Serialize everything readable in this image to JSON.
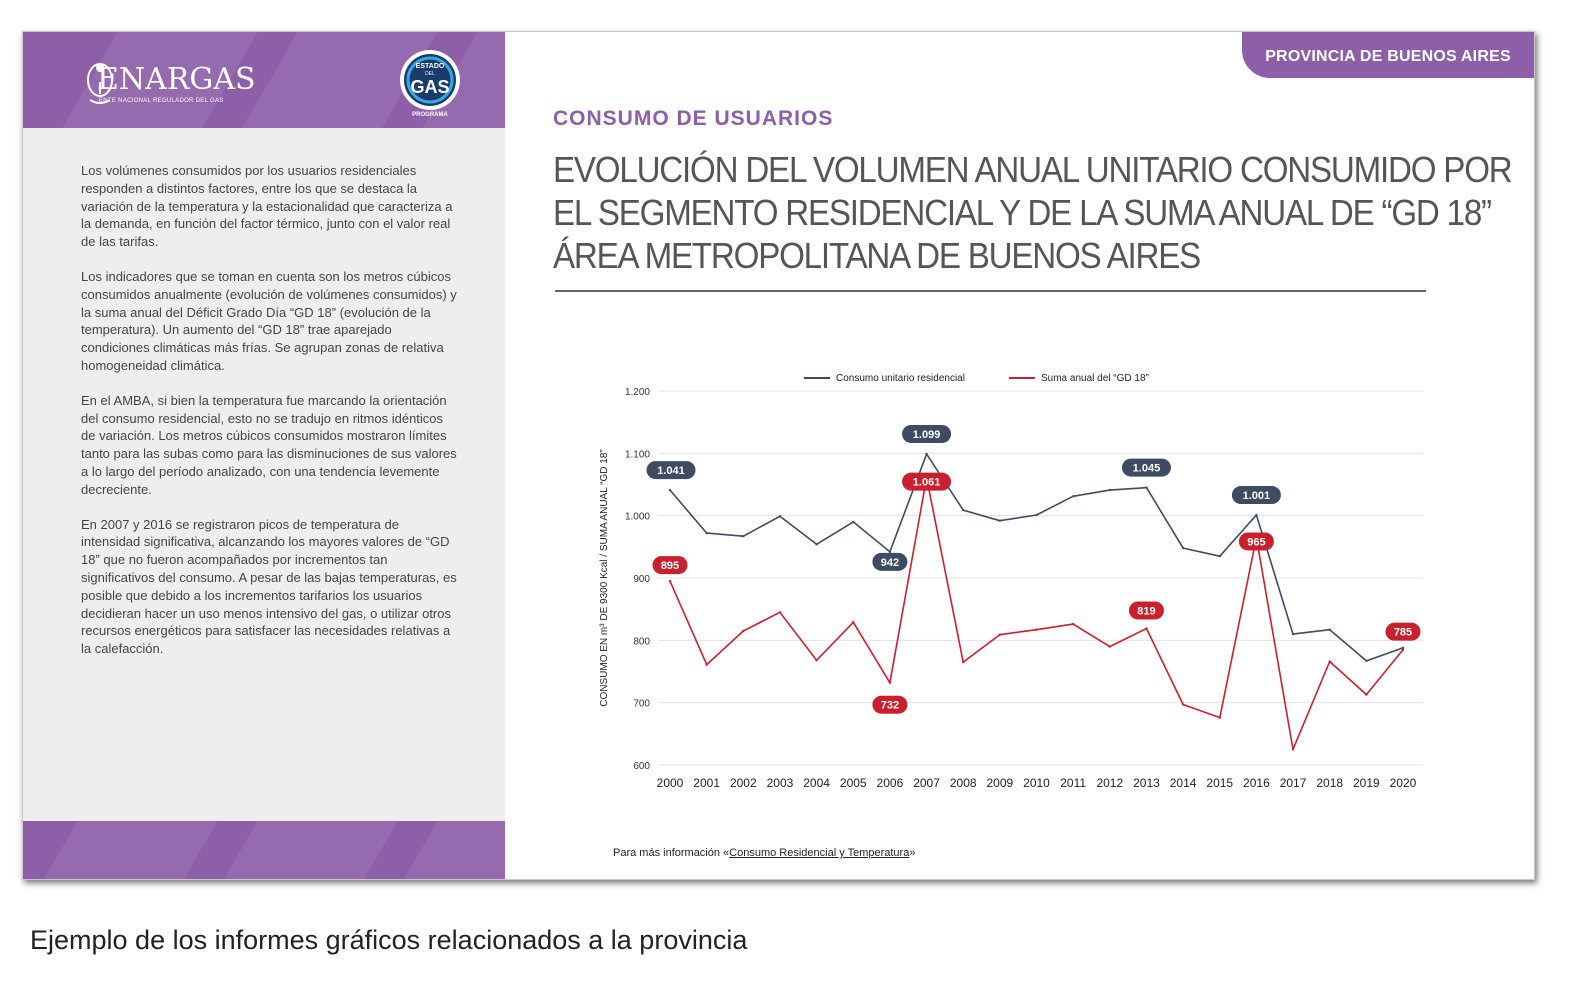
{
  "brand": {
    "name": "ENARGAS",
    "subtitle": "ENTE NACIONAL REGULADOR DEL GAS",
    "badge_top": "ESTADO",
    "badge_mid": "DEL",
    "badge_main": "GAS",
    "badge_caption": "PROGRAMA"
  },
  "tab_label": "PROVINCIA DE BUENOS AIRES",
  "section_title": "CONSUMO DE USUARIOS",
  "main_title": {
    "line1": "EVOLUCIÓN DEL VOLUMEN ANUAL UNITARIO CONSUMIDO POR",
    "line2": "EL SEGMENTO RESIDENCIAL Y DE LA SUMA ANUAL DE “GD 18”",
    "line3": "ÁREA METROPOLITANA DE BUENOS AIRES"
  },
  "body_paragraphs": [
    "Los volúmenes consumidos por los usuarios residenciales responden a distintos factores, entre los que se destaca la variación de la temperatura y la estacionalidad que caracteriza a la demanda, en función del factor térmico, junto con el valor real de las tarifas.",
    "Los indicadores que se toman en cuenta son los metros cúbicos consumidos anualmente (evolución de volúmenes consumidos) y la suma anual del Déficit Grado Día “GD 18” (evolución de la temperatura). Un aumento del “GD 18” trae aparejado condiciones climáticas más frías. Se agrupan zonas de relativa homogeneidad climática.",
    "En el AMBA, si bien la temperatura fue marcando la orientación del consumo residencial, esto no se tradujo en ritmos idénticos de variación. Los metros cúbicos consumidos mostraron límites tanto para las subas como para las disminuciones de sus valores a lo largo del período analizado, con una tendencia levemente decreciente.",
    "En 2007 y 2016 se registraron picos de temperatura de intensidad significativa, alcanzando los mayores valores de “GD 18” que no fueron acompañados por incrementos tan significativos del consumo. A pesar de las bajas temperaturas, es posible que debido a los incrementos tarifarios los usuarios decidieran hacer un uso menos intensivo del gas, o utilizar otros recursos energéticos para satisfacer las necesidades relativas a la calefacción."
  ],
  "footnote": {
    "prefix": "Para más información «",
    "link": "Consumo Residencial y Temperatura",
    "suffix": "»"
  },
  "caption": "Ejemplo de los informes gráficos relacionados a la provincia",
  "colors": {
    "purple": "#8d5fa8",
    "series_blue": "#3e4b63",
    "series_red": "#c8202d"
  },
  "chart_data": {
    "type": "line",
    "ylabel": "CONSUMO EN m³ DE 9300 Kcal / SUMA ANUAL “GD 18”",
    "xlabel": "",
    "ylim": [
      600,
      1200
    ],
    "yticks": [
      600,
      700,
      800,
      900,
      1000,
      1100,
      1200
    ],
    "ytick_labels": [
      "600",
      "700",
      "800",
      "900",
      "1.000",
      "1.100",
      "1.200"
    ],
    "grid": true,
    "legend_position": "top",
    "categories": [
      "2000",
      "2001",
      "2002",
      "2003",
      "2004",
      "2005",
      "2006",
      "2007",
      "2008",
      "2009",
      "2010",
      "2011",
      "2012",
      "2013",
      "2014",
      "2015",
      "2016",
      "2017",
      "2018",
      "2019",
      "2020"
    ],
    "series": [
      {
        "name": "Consumo unitario residencial",
        "color": "#3e4b63",
        "values": [
          1041,
          972,
          967,
          999,
          954,
          990,
          942,
          1099,
          1009,
          992,
          1001,
          1031,
          1041,
          1045,
          948,
          935,
          1001,
          810,
          817,
          767,
          788
        ],
        "labels": [
          {
            "index": 0,
            "text": "1.041"
          },
          {
            "index": 6,
            "text": "942"
          },
          {
            "index": 7,
            "text": "1.099"
          },
          {
            "index": 13,
            "text": "1.045"
          },
          {
            "index": 16,
            "text": "1.001"
          }
        ]
      },
      {
        "name": "Suma anual del “GD 18”",
        "color": "#c8202d",
        "values": [
          895,
          761,
          815,
          845,
          768,
          829,
          732,
          1061,
          765,
          809,
          817,
          826,
          790,
          819,
          697,
          676,
          965,
          625,
          766,
          713,
          785
        ],
        "labels": [
          {
            "index": 0,
            "text": "895"
          },
          {
            "index": 6,
            "text": "732"
          },
          {
            "index": 7,
            "text": "1.061"
          },
          {
            "index": 13,
            "text": "819"
          },
          {
            "index": 16,
            "text": "965"
          },
          {
            "index": 20,
            "text": "785"
          }
        ]
      }
    ]
  }
}
